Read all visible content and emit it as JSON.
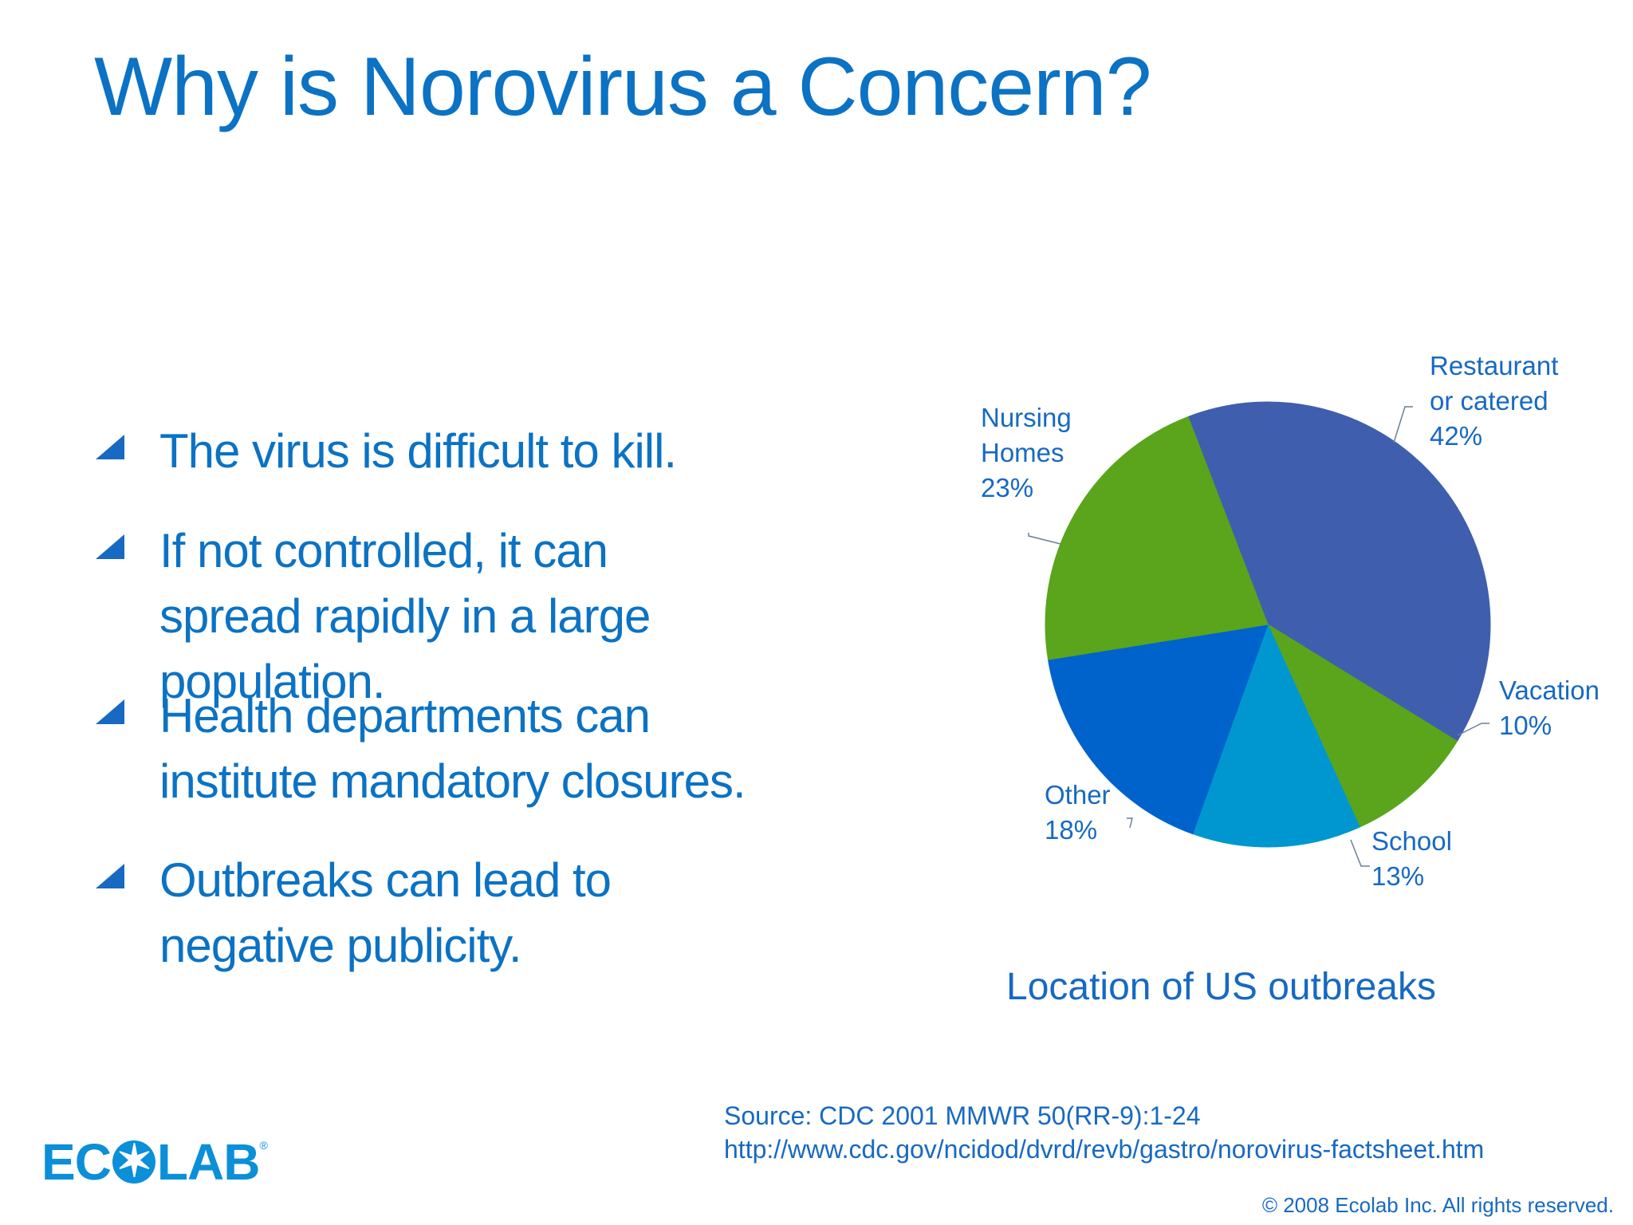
{
  "slide": {
    "title": "Why is Norovirus a Concern?",
    "bullets": [
      "The virus is difficult to kill.",
      "If not controlled, it can spread rapidly in a large population.",
      "Health departments can institute mandatory closures.",
      "Outbreaks can lead to negative publicity."
    ],
    "source_line1": "Source: CDC 2001 MMWR 50(RR-9):1-24",
    "source_line2": "http://www.cdc.gov/ncidod/dvrd/revb/gastro/norovirus-factsheet.htm",
    "copyright": "© 2008 Ecolab Inc. All rights reserved.",
    "logo": {
      "text_left": "EC",
      "text_right": "LAB",
      "mark": "®",
      "lettering": "ECOLAB"
    }
  },
  "colors": {
    "title": "#0b72c4",
    "text": "#1769c2",
    "restaurant": "#3f5fae",
    "vacation": "#5aa51c",
    "school": "#0097d0",
    "other": "#0063cc",
    "nursing": "#5aa51c"
  },
  "chart_data": {
    "type": "pie",
    "title": "Location of US outbreaks",
    "slices": [
      {
        "label": [
          "Restaurant",
          "or catered",
          "42%"
        ],
        "category": "Restaurant or catered",
        "value": 42,
        "color": "#3f5fae"
      },
      {
        "label": [
          "Vacation",
          "10%"
        ],
        "category": "Vacation",
        "value": 10,
        "color": "#5aa51c"
      },
      {
        "label": [
          "School",
          "13%"
        ],
        "category": "School",
        "value": 13,
        "color": "#0097d0"
      },
      {
        "label": [
          "Other",
          "18%"
        ],
        "category": "Other",
        "value": 18,
        "color": "#0063cc"
      },
      {
        "label": [
          "Nursing",
          "Homes",
          "23%"
        ],
        "category": "Nursing Homes",
        "value": 23,
        "color": "#5aa51c"
      }
    ]
  }
}
